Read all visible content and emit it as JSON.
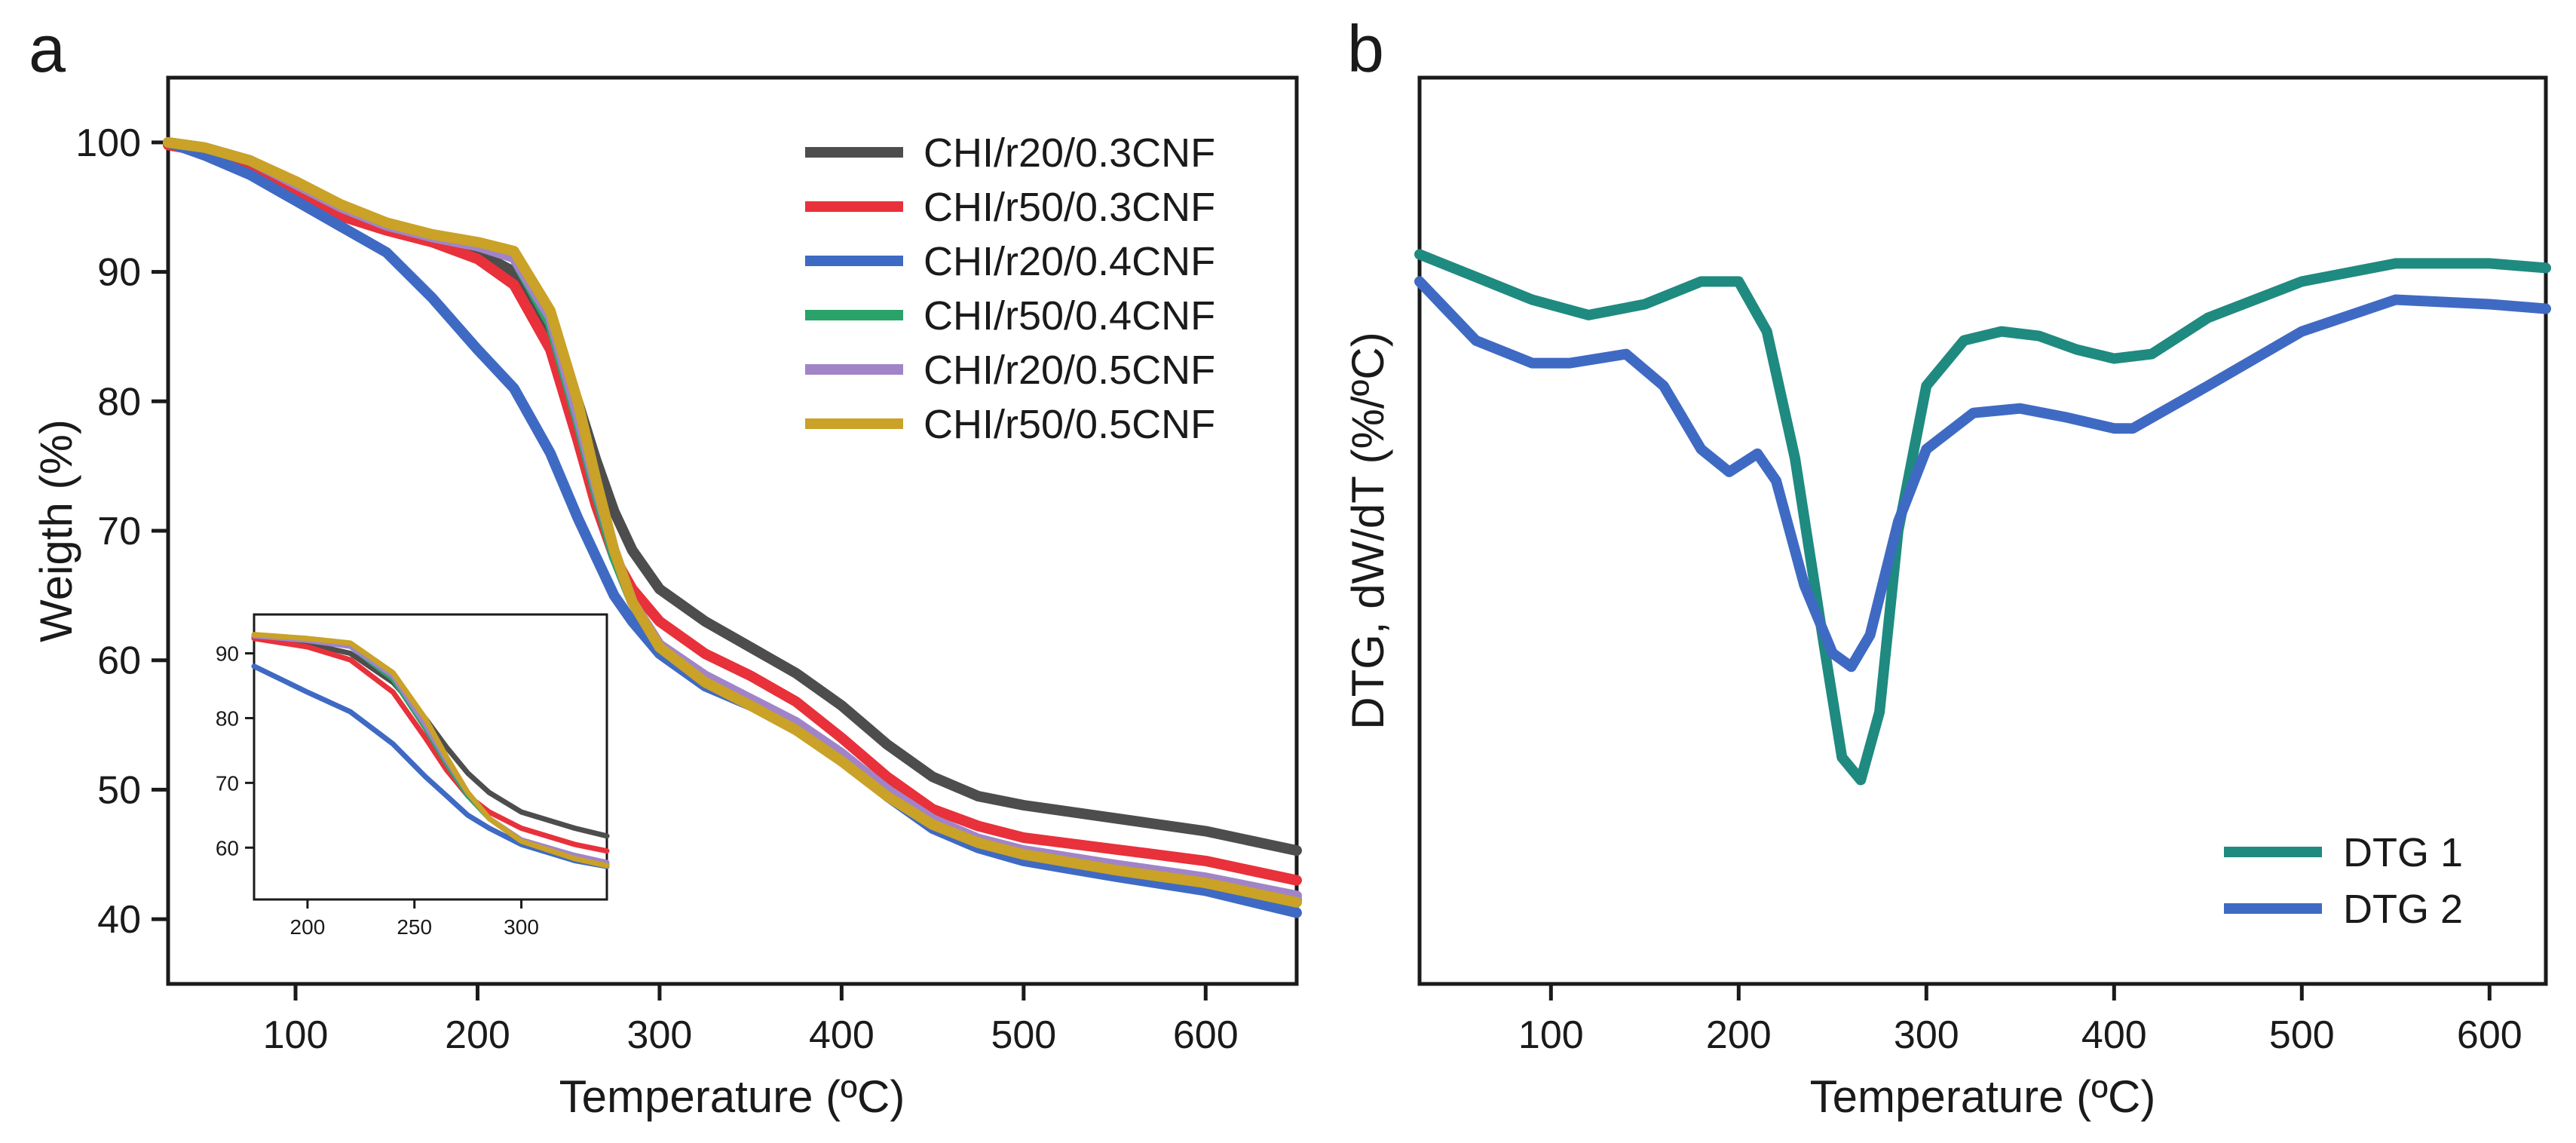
{
  "chart_data": [
    {
      "panel_label": "a",
      "type": "line",
      "title": "",
      "xlabel": "Temperature (ºC)",
      "ylabel": "Weigth (%)",
      "xlim": [
        30,
        650
      ],
      "ylim": [
        35,
        105
      ],
      "xticks": [
        100,
        200,
        300,
        400,
        500,
        600
      ],
      "yticks": [
        40,
        50,
        60,
        70,
        80,
        90,
        100
      ],
      "legend_position": "top-right",
      "series": [
        {
          "name": "CHI/r20/0.3CNF",
          "color": "#4d4d4d",
          "x": [
            30,
            50,
            75,
            100,
            125,
            150,
            175,
            200,
            220,
            240,
            255,
            265,
            275,
            285,
            300,
            325,
            350,
            375,
            400,
            425,
            450,
            475,
            500,
            550,
            600,
            650
          ],
          "y": [
            100,
            99.5,
            98.5,
            96.5,
            94.5,
            93.5,
            92.5,
            91.5,
            90,
            85.5,
            80,
            75.5,
            71.5,
            68.5,
            65.5,
            63,
            61,
            59,
            56.5,
            53.5,
            51,
            49.5,
            48.8,
            47.8,
            46.8,
            45.3
          ]
        },
        {
          "name": "CHI/r50/0.3CNF",
          "color": "#e8313a",
          "x": [
            30,
            50,
            75,
            100,
            125,
            150,
            175,
            200,
            220,
            240,
            255,
            265,
            275,
            285,
            300,
            325,
            350,
            375,
            400,
            425,
            450,
            475,
            500,
            550,
            600,
            650
          ],
          "y": [
            99.8,
            99.3,
            98,
            96,
            94.3,
            93.2,
            92.3,
            91,
            89,
            84,
            77,
            72,
            68,
            65.5,
            63,
            60.5,
            58.8,
            56.8,
            54,
            51,
            48.5,
            47.2,
            46.3,
            45.4,
            44.5,
            43
          ]
        },
        {
          "name": "CHI/r20/0.4CNF",
          "color": "#3f6ac4",
          "x": [
            30,
            50,
            75,
            100,
            125,
            150,
            175,
            200,
            220,
            240,
            255,
            265,
            275,
            285,
            300,
            325,
            350,
            375,
            400,
            425,
            450,
            475,
            500,
            550,
            600,
            650
          ],
          "y": [
            100,
            99,
            97.5,
            95.5,
            93.5,
            91.5,
            88,
            84,
            81,
            76,
            71,
            68,
            65,
            63,
            60.5,
            58,
            56.5,
            54.8,
            52.5,
            49.5,
            47,
            45.5,
            44.5,
            43.3,
            42.2,
            40.5
          ]
        },
        {
          "name": "CHI/r50/0.4CNF",
          "color": "#29a36a",
          "x": [
            30,
            50,
            75,
            100,
            125,
            150,
            175,
            200,
            220,
            240,
            255,
            265,
            275,
            285,
            300,
            325,
            350,
            375,
            400,
            425,
            450,
            475,
            500,
            550,
            600,
            650
          ],
          "y": [
            100,
            99.6,
            98.6,
            96.8,
            95,
            93.6,
            92.7,
            92,
            91.1,
            86,
            78.5,
            73,
            68,
            64.5,
            61,
            58.5,
            56.8,
            55,
            52.5,
            49.8,
            47.5,
            46,
            45.1,
            44,
            43,
            41.5
          ]
        },
        {
          "name": "CHI/r20/0.5CNF",
          "color": "#a184c8",
          "x": [
            30,
            50,
            75,
            100,
            125,
            150,
            175,
            200,
            220,
            240,
            255,
            265,
            275,
            285,
            300,
            325,
            350,
            375,
            400,
            425,
            450,
            475,
            500,
            550,
            600,
            650
          ],
          "y": [
            100,
            99.6,
            98.6,
            96.8,
            95,
            93.6,
            92.7,
            92,
            91.1,
            86.5,
            79,
            73.5,
            68.5,
            64.5,
            61.2,
            58.8,
            57,
            55.2,
            52.8,
            50,
            47.7,
            46.2,
            45.3,
            44.2,
            43.2,
            41.8
          ]
        },
        {
          "name": "CHI/r50/0.5CNF",
          "color": "#c9a227",
          "x": [
            30,
            50,
            75,
            100,
            125,
            150,
            175,
            200,
            220,
            240,
            255,
            265,
            275,
            285,
            300,
            325,
            350,
            375,
            400,
            425,
            450,
            475,
            500,
            550,
            600,
            650
          ],
          "y": [
            100,
            99.6,
            98.6,
            97,
            95.2,
            93.8,
            92.9,
            92.3,
            91.6,
            87,
            80,
            74,
            68.5,
            64.5,
            61,
            58.3,
            56.5,
            54.6,
            52.2,
            49.5,
            47.3,
            45.9,
            45,
            43.8,
            42.8,
            41.3
          ]
        }
      ],
      "inset": {
        "type": "line",
        "xlim": [
          175,
          340
        ],
        "ylim": [
          52,
          96
        ],
        "xticks": [
          200,
          250,
          300
        ],
        "yticks": [
          60,
          70,
          80,
          90
        ]
      }
    },
    {
      "panel_label": "b",
      "type": "line",
      "title": "",
      "xlabel": "Temperature (ºC)",
      "ylabel": "DTG, dW/dT (%/ºC)",
      "xlim": [
        30,
        630
      ],
      "ylim": [
        0,
        100
      ],
      "xticks": [
        100,
        200,
        300,
        400,
        500,
        600
      ],
      "yticks": [],
      "legend_position": "bottom-right",
      "series": [
        {
          "name": "DTG 1",
          "color": "#1f8a80",
          "x": [
            30,
            60,
            90,
            120,
            150,
            180,
            200,
            215,
            230,
            245,
            255,
            265,
            275,
            285,
            300,
            320,
            340,
            360,
            380,
            400,
            420,
            450,
            500,
            550,
            600,
            630
          ],
          "y": [
            80.5,
            78,
            75.5,
            73.8,
            75,
            77.5,
            77.5,
            72,
            58,
            38,
            25,
            22.5,
            30,
            50,
            66,
            71,
            72,
            71.5,
            70,
            69,
            69.5,
            73.5,
            77.5,
            79.5,
            79.5,
            79
          ]
        },
        {
          "name": "DTG 2",
          "color": "#3f6ac4",
          "x": [
            30,
            60,
            90,
            110,
            140,
            160,
            180,
            195,
            210,
            220,
            235,
            250,
            260,
            270,
            285,
            300,
            325,
            350,
            375,
            400,
            410,
            450,
            500,
            550,
            600,
            630
          ],
          "y": [
            77.5,
            71,
            68.5,
            68.5,
            69.5,
            66,
            59,
            56.5,
            58.5,
            55.5,
            44,
            36.5,
            35,
            38.5,
            51,
            59,
            63,
            63.5,
            62.5,
            61.3,
            61.3,
            66,
            72,
            75.5,
            75,
            74.5
          ]
        }
      ]
    }
  ]
}
